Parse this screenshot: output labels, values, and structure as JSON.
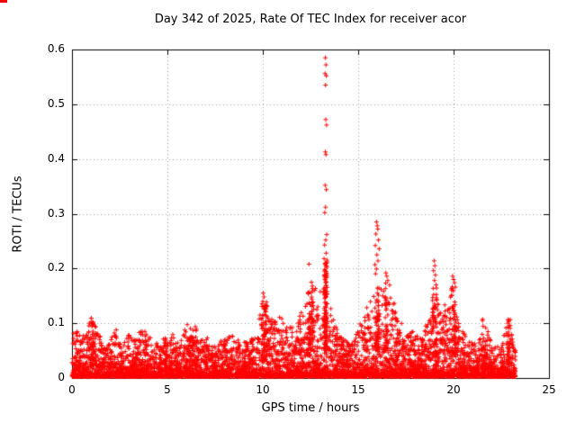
{
  "chart_data": {
    "type": "scatter",
    "title": "Day 342 of 2025, Rate Of TEC Index for receiver acor",
    "xlabel": "GPS time / hours",
    "ylabel": "ROTI / TECUs",
    "xlim": [
      0,
      25
    ],
    "ylim": [
      0,
      0.6
    ],
    "xtick_values": [
      0,
      5,
      10,
      15,
      20,
      25
    ],
    "xtick_labels": [
      "0",
      "5",
      "10",
      "15",
      "20",
      "25"
    ],
    "ytick_values": [
      0,
      0.1,
      0.2,
      0.3,
      0.4,
      0.5,
      0.6
    ],
    "ytick_labels": [
      "0",
      "0.1",
      "0.2",
      "0.3",
      "0.4",
      "0.5",
      "0.6"
    ],
    "grid": true,
    "marker": "plus",
    "color": "#ff0000",
    "grid_color": "#9a9a9a",
    "axis_color": "#000000",
    "background": "#ffffff",
    "generation": {
      "seed": 1342,
      "count": 6000,
      "x_max": 23.25,
      "base": 0.003,
      "shape": 3.0
    },
    "envelope": [
      [
        0.0,
        0.085
      ],
      [
        0.3,
        0.09
      ],
      [
        0.5,
        0.07
      ],
      [
        1.0,
        0.115
      ],
      [
        1.3,
        0.09
      ],
      [
        1.7,
        0.06
      ],
      [
        2.0,
        0.07
      ],
      [
        2.3,
        0.09
      ],
      [
        2.6,
        0.06
      ],
      [
        3.0,
        0.08
      ],
      [
        3.3,
        0.07
      ],
      [
        3.6,
        0.09
      ],
      [
        4.0,
        0.085
      ],
      [
        4.3,
        0.06
      ],
      [
        4.6,
        0.07
      ],
      [
        5.0,
        0.075
      ],
      [
        5.3,
        0.085
      ],
      [
        5.6,
        0.06
      ],
      [
        6.0,
        0.1
      ],
      [
        6.3,
        0.09
      ],
      [
        6.6,
        0.08
      ],
      [
        7.0,
        0.085
      ],
      [
        7.3,
        0.06
      ],
      [
        7.6,
        0.065
      ],
      [
        8.0,
        0.07
      ],
      [
        8.3,
        0.08
      ],
      [
        8.6,
        0.075
      ],
      [
        9.0,
        0.065
      ],
      [
        9.3,
        0.07
      ],
      [
        9.6,
        0.08
      ],
      [
        10.0,
        0.15
      ],
      [
        10.2,
        0.13
      ],
      [
        10.5,
        0.11
      ],
      [
        10.8,
        0.12
      ],
      [
        11.0,
        0.11
      ],
      [
        11.3,
        0.09
      ],
      [
        11.6,
        0.1
      ],
      [
        12.0,
        0.12
      ],
      [
        12.3,
        0.15
      ],
      [
        12.6,
        0.17
      ],
      [
        13.0,
        0.16
      ],
      [
        13.3,
        0.2
      ],
      [
        13.6,
        0.12
      ],
      [
        14.0,
        0.08
      ],
      [
        14.3,
        0.07
      ],
      [
        14.6,
        0.06
      ],
      [
        15.0,
        0.09
      ],
      [
        15.3,
        0.12
      ],
      [
        15.6,
        0.14
      ],
      [
        16.0,
        0.2
      ],
      [
        16.3,
        0.16
      ],
      [
        16.6,
        0.19
      ],
      [
        17.0,
        0.12
      ],
      [
        17.3,
        0.1
      ],
      [
        17.6,
        0.08
      ],
      [
        18.0,
        0.09
      ],
      [
        18.3,
        0.08
      ],
      [
        18.6,
        0.1
      ],
      [
        19.0,
        0.16
      ],
      [
        19.3,
        0.12
      ],
      [
        19.6,
        0.14
      ],
      [
        20.0,
        0.17
      ],
      [
        20.3,
        0.12
      ],
      [
        20.6,
        0.08
      ],
      [
        21.0,
        0.07
      ],
      [
        21.3,
        0.06
      ],
      [
        21.6,
        0.11
      ],
      [
        22.0,
        0.07
      ],
      [
        22.3,
        0.06
      ],
      [
        22.6,
        0.09
      ],
      [
        22.9,
        0.11
      ],
      [
        23.1,
        0.07
      ],
      [
        23.25,
        0.05
      ]
    ],
    "clusters": [
      {
        "x": 13.3,
        "spread": 0.08,
        "count": 120,
        "ymin": 0.05,
        "ymax": 0.22
      },
      {
        "x": 16.0,
        "spread": 0.1,
        "count": 60,
        "ymin": 0.05,
        "ymax": 0.2
      },
      {
        "x": 12.5,
        "spread": 0.15,
        "count": 50,
        "ymin": 0.04,
        "ymax": 0.17
      },
      {
        "x": 19.0,
        "spread": 0.12,
        "count": 40,
        "ymin": 0.04,
        "ymax": 0.17
      },
      {
        "x": 20.0,
        "spread": 0.12,
        "count": 40,
        "ymin": 0.04,
        "ymax": 0.17
      },
      {
        "x": 10.1,
        "spread": 0.15,
        "count": 50,
        "ymin": 0.03,
        "ymax": 0.14
      },
      {
        "x": 16.5,
        "spread": 0.08,
        "count": 30,
        "ymin": 0.05,
        "ymax": 0.185
      },
      {
        "x": 22.9,
        "spread": 0.08,
        "count": 30,
        "ymin": 0.02,
        "ymax": 0.11
      },
      {
        "x": 21.6,
        "spread": 0.1,
        "count": 25,
        "ymin": 0.02,
        "ymax": 0.11
      },
      {
        "x": 6.3,
        "spread": 0.3,
        "count": 40,
        "ymin": 0.02,
        "ymax": 0.1
      },
      {
        "x": 1.0,
        "spread": 0.15,
        "count": 30,
        "ymin": 0.02,
        "ymax": 0.11
      }
    ],
    "outliers": [
      [
        13.28,
        0.585
      ],
      [
        13.31,
        0.572
      ],
      [
        13.26,
        0.556
      ],
      [
        13.33,
        0.552
      ],
      [
        13.29,
        0.535
      ],
      [
        13.3,
        0.472
      ],
      [
        13.34,
        0.462
      ],
      [
        13.28,
        0.413
      ],
      [
        13.31,
        0.408
      ],
      [
        13.27,
        0.352
      ],
      [
        13.33,
        0.344
      ],
      [
        13.29,
        0.312
      ],
      [
        13.25,
        0.302
      ],
      [
        13.35,
        0.262
      ],
      [
        13.3,
        0.252
      ],
      [
        13.24,
        0.243
      ],
      [
        13.32,
        0.228
      ],
      [
        13.21,
        0.218
      ],
      [
        13.37,
        0.212
      ],
      [
        13.3,
        0.205
      ],
      [
        15.96,
        0.285
      ],
      [
        16.0,
        0.278
      ],
      [
        16.03,
        0.272
      ],
      [
        15.93,
        0.263
      ],
      [
        16.06,
        0.252
      ],
      [
        15.9,
        0.242
      ],
      [
        16.1,
        0.236
      ],
      [
        15.98,
        0.225
      ],
      [
        16.04,
        0.214
      ],
      [
        15.88,
        0.207
      ],
      [
        16.45,
        0.192
      ],
      [
        16.5,
        0.186
      ],
      [
        16.55,
        0.178
      ],
      [
        18.98,
        0.214
      ],
      [
        19.02,
        0.205
      ],
      [
        18.95,
        0.196
      ],
      [
        19.05,
        0.188
      ],
      [
        19.0,
        0.178
      ],
      [
        19.08,
        0.17
      ],
      [
        19.95,
        0.186
      ],
      [
        20.0,
        0.18
      ],
      [
        20.05,
        0.174
      ],
      [
        20.1,
        0.166
      ],
      [
        19.9,
        0.16
      ],
      [
        12.42,
        0.208
      ],
      [
        12.55,
        0.175
      ],
      [
        12.6,
        0.168
      ],
      [
        10.02,
        0.155
      ],
      [
        10.06,
        0.148
      ],
      [
        10.0,
        0.14
      ]
    ]
  }
}
